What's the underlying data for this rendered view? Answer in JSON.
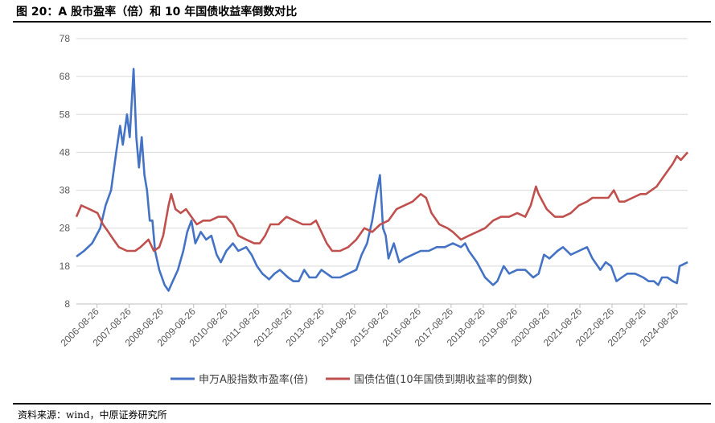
{
  "header": {
    "title": "图 20：A 股市盈率（倍）和 10 年国债收益率倒数对比"
  },
  "footer": {
    "source": "资料来源：wind，中原证券研究所"
  },
  "colors": {
    "pe_series": "#4472C4",
    "bond_series": "#C0504D",
    "grid": "#D9D9D9",
    "axis": "#595959"
  },
  "chart_data": {
    "type": "line",
    "title": "",
    "xlabel": "",
    "ylabel": "",
    "ylim": [
      8,
      78
    ],
    "yticks": [
      8,
      18,
      28,
      38,
      48,
      58,
      68,
      78
    ],
    "xlim": [
      "2006-01-04",
      "2024-12-31"
    ],
    "xticks": [
      "2006-08-26",
      "2007-08-26",
      "2008-08-26",
      "2009-08-26",
      "2010-08-26",
      "2011-08-26",
      "2012-08-26",
      "2013-08-26",
      "2014-08-26",
      "2015-08-26",
      "2016-08-26",
      "2017-08-26",
      "2018-08-26",
      "2019-08-26",
      "2020-08-26",
      "2021-08-26",
      "2022-08-26",
      "2023-08-26",
      "2024-08-26"
    ],
    "grid": "horizontal",
    "legend": "bottom",
    "series": [
      {
        "name": "申万A股指数市盈率(倍)",
        "points": [
          [
            "2006-01-04",
            20.5
          ],
          [
            "2006-04-01",
            22
          ],
          [
            "2006-07-01",
            24
          ],
          [
            "2006-10-01",
            28
          ],
          [
            "2006-12-01",
            34
          ],
          [
            "2007-02-01",
            38
          ],
          [
            "2007-04-01",
            48
          ],
          [
            "2007-05-15",
            55
          ],
          [
            "2007-06-15",
            50
          ],
          [
            "2007-08-01",
            58
          ],
          [
            "2007-09-01",
            52
          ],
          [
            "2007-10-15",
            70
          ],
          [
            "2007-11-15",
            52
          ],
          [
            "2007-12-15",
            44
          ],
          [
            "2008-01-15",
            52
          ],
          [
            "2008-02-15",
            42
          ],
          [
            "2008-03-15",
            38
          ],
          [
            "2008-04-15",
            30
          ],
          [
            "2008-05-15",
            30
          ],
          [
            "2008-06-15",
            22
          ],
          [
            "2008-08-01",
            17
          ],
          [
            "2008-10-01",
            13
          ],
          [
            "2008-11-15",
            11.5
          ],
          [
            "2009-01-01",
            14
          ],
          [
            "2009-03-01",
            17
          ],
          [
            "2009-05-01",
            22
          ],
          [
            "2009-06-15",
            27
          ],
          [
            "2009-08-01",
            30
          ],
          [
            "2009-09-15",
            24
          ],
          [
            "2009-11-15",
            27
          ],
          [
            "2010-01-15",
            25
          ],
          [
            "2010-03-15",
            26
          ],
          [
            "2010-05-15",
            21
          ],
          [
            "2010-07-01",
            19
          ],
          [
            "2010-09-01",
            22
          ],
          [
            "2010-11-15",
            24
          ],
          [
            "2011-01-15",
            22
          ],
          [
            "2011-04-15",
            23
          ],
          [
            "2011-06-15",
            21
          ],
          [
            "2011-08-15",
            18
          ],
          [
            "2011-10-15",
            16
          ],
          [
            "2011-12-31",
            14.5
          ],
          [
            "2012-03-01",
            16
          ],
          [
            "2012-05-01",
            17
          ],
          [
            "2012-08-01",
            15
          ],
          [
            "2012-10-01",
            14
          ],
          [
            "2012-12-01",
            14
          ],
          [
            "2013-02-01",
            17
          ],
          [
            "2013-04-01",
            15
          ],
          [
            "2013-06-15",
            15
          ],
          [
            "2013-08-15",
            17
          ],
          [
            "2013-10-15",
            16
          ],
          [
            "2013-12-15",
            15
          ],
          [
            "2014-03-15",
            15
          ],
          [
            "2014-06-15",
            16
          ],
          [
            "2014-09-15",
            17
          ],
          [
            "2014-11-15",
            21
          ],
          [
            "2015-01-15",
            24
          ],
          [
            "2015-03-15",
            30
          ],
          [
            "2015-05-01",
            37
          ],
          [
            "2015-06-10",
            42
          ],
          [
            "2015-07-15",
            28
          ],
          [
            "2015-08-15",
            26
          ],
          [
            "2015-09-15",
            20
          ],
          [
            "2015-11-15",
            24
          ],
          [
            "2016-01-15",
            19
          ],
          [
            "2016-03-15",
            20
          ],
          [
            "2016-06-15",
            21
          ],
          [
            "2016-09-15",
            22
          ],
          [
            "2016-12-15",
            22
          ],
          [
            "2017-03-15",
            23
          ],
          [
            "2017-06-15",
            23
          ],
          [
            "2017-09-15",
            24
          ],
          [
            "2017-12-15",
            23
          ],
          [
            "2018-02-01",
            24
          ],
          [
            "2018-03-15",
            22
          ],
          [
            "2018-06-15",
            19
          ],
          [
            "2018-09-15",
            15
          ],
          [
            "2018-12-15",
            13
          ],
          [
            "2019-02-01",
            14
          ],
          [
            "2019-04-15",
            18
          ],
          [
            "2019-06-15",
            16
          ],
          [
            "2019-09-15",
            17
          ],
          [
            "2019-12-15",
            17
          ],
          [
            "2020-03-15",
            15
          ],
          [
            "2020-05-15",
            16
          ],
          [
            "2020-07-15",
            21
          ],
          [
            "2020-09-15",
            20
          ],
          [
            "2020-12-15",
            22
          ],
          [
            "2021-02-15",
            23
          ],
          [
            "2021-05-15",
            21
          ],
          [
            "2021-08-15",
            22
          ],
          [
            "2021-11-15",
            23
          ],
          [
            "2022-01-15",
            20
          ],
          [
            "2022-04-15",
            17
          ],
          [
            "2022-06-15",
            19
          ],
          [
            "2022-08-15",
            18
          ],
          [
            "2022-10-15",
            14
          ],
          [
            "2022-12-15",
            15
          ],
          [
            "2023-02-15",
            16
          ],
          [
            "2023-05-15",
            16
          ],
          [
            "2023-08-15",
            15
          ],
          [
            "2023-10-15",
            14
          ],
          [
            "2023-12-15",
            14
          ],
          [
            "2024-02-01",
            13
          ],
          [
            "2024-03-15",
            15
          ],
          [
            "2024-05-15",
            15
          ],
          [
            "2024-07-15",
            14
          ],
          [
            "2024-09-01",
            13.5
          ],
          [
            "2024-10-01",
            18
          ],
          [
            "2024-12-31",
            19
          ]
        ]
      },
      {
        "name": "国债估值(10年国债到期收益率的倒数)",
        "points": [
          [
            "2006-01-04",
            31
          ],
          [
            "2006-03-01",
            34
          ],
          [
            "2006-06-01",
            33
          ],
          [
            "2006-09-01",
            32
          ],
          [
            "2006-11-01",
            29
          ],
          [
            "2007-01-01",
            27
          ],
          [
            "2007-03-01",
            25
          ],
          [
            "2007-05-01",
            23
          ],
          [
            "2007-08-01",
            22
          ],
          [
            "2007-11-01",
            22
          ],
          [
            "2008-01-01",
            23
          ],
          [
            "2008-04-01",
            25
          ],
          [
            "2008-06-01",
            22
          ],
          [
            "2008-08-01",
            23
          ],
          [
            "2008-09-15",
            26
          ],
          [
            "2008-10-15",
            30
          ],
          [
            "2008-11-15",
            34
          ],
          [
            "2008-12-15",
            37
          ],
          [
            "2009-02-01",
            33
          ],
          [
            "2009-04-01",
            32
          ],
          [
            "2009-06-01",
            33
          ],
          [
            "2009-08-01",
            31
          ],
          [
            "2009-10-01",
            29
          ],
          [
            "2009-12-15",
            30
          ],
          [
            "2010-03-01",
            30
          ],
          [
            "2010-06-01",
            31
          ],
          [
            "2010-09-01",
            31
          ],
          [
            "2010-11-15",
            29
          ],
          [
            "2011-01-15",
            26
          ],
          [
            "2011-04-15",
            25
          ],
          [
            "2011-07-15",
            24
          ],
          [
            "2011-09-15",
            24
          ],
          [
            "2011-11-15",
            26
          ],
          [
            "2012-01-15",
            29
          ],
          [
            "2012-04-15",
            29
          ],
          [
            "2012-07-15",
            31
          ],
          [
            "2012-10-15",
            30
          ],
          [
            "2013-01-15",
            29
          ],
          [
            "2013-04-15",
            29
          ],
          [
            "2013-06-15",
            30
          ],
          [
            "2013-08-15",
            27
          ],
          [
            "2013-10-15",
            24
          ],
          [
            "2013-12-15",
            22
          ],
          [
            "2014-03-15",
            22
          ],
          [
            "2014-06-15",
            23
          ],
          [
            "2014-09-15",
            25
          ],
          [
            "2014-12-15",
            28
          ],
          [
            "2015-03-15",
            27
          ],
          [
            "2015-06-15",
            29
          ],
          [
            "2015-09-15",
            30
          ],
          [
            "2015-12-15",
            33
          ],
          [
            "2016-03-15",
            34
          ],
          [
            "2016-06-15",
            35
          ],
          [
            "2016-09-15",
            37
          ],
          [
            "2016-11-15",
            36
          ],
          [
            "2017-01-15",
            32
          ],
          [
            "2017-04-15",
            29
          ],
          [
            "2017-07-15",
            28
          ],
          [
            "2017-09-15",
            27
          ],
          [
            "2017-12-15",
            25
          ],
          [
            "2018-03-15",
            26
          ],
          [
            "2018-06-15",
            27
          ],
          [
            "2018-09-15",
            28
          ],
          [
            "2018-12-15",
            30
          ],
          [
            "2019-03-15",
            31
          ],
          [
            "2019-06-15",
            31
          ],
          [
            "2019-09-15",
            32
          ],
          [
            "2019-12-15",
            31
          ],
          [
            "2020-02-15",
            34
          ],
          [
            "2020-04-15",
            39
          ],
          [
            "2020-05-15",
            37
          ],
          [
            "2020-08-15",
            33
          ],
          [
            "2020-11-15",
            31
          ],
          [
            "2021-02-15",
            31
          ],
          [
            "2021-05-15",
            32
          ],
          [
            "2021-08-15",
            34
          ],
          [
            "2021-11-15",
            35
          ],
          [
            "2022-01-15",
            36
          ],
          [
            "2022-04-15",
            36
          ],
          [
            "2022-07-15",
            36
          ],
          [
            "2022-09-15",
            38
          ],
          [
            "2022-11-15",
            35
          ],
          [
            "2023-01-15",
            35
          ],
          [
            "2023-04-15",
            36
          ],
          [
            "2023-07-15",
            37
          ],
          [
            "2023-09-15",
            37
          ],
          [
            "2023-11-15",
            38
          ],
          [
            "2024-01-15",
            39
          ],
          [
            "2024-03-15",
            41
          ],
          [
            "2024-05-15",
            43
          ],
          [
            "2024-07-15",
            45
          ],
          [
            "2024-09-01",
            47
          ],
          [
            "2024-10-15",
            46
          ],
          [
            "2024-12-31",
            48
          ]
        ]
      }
    ]
  }
}
